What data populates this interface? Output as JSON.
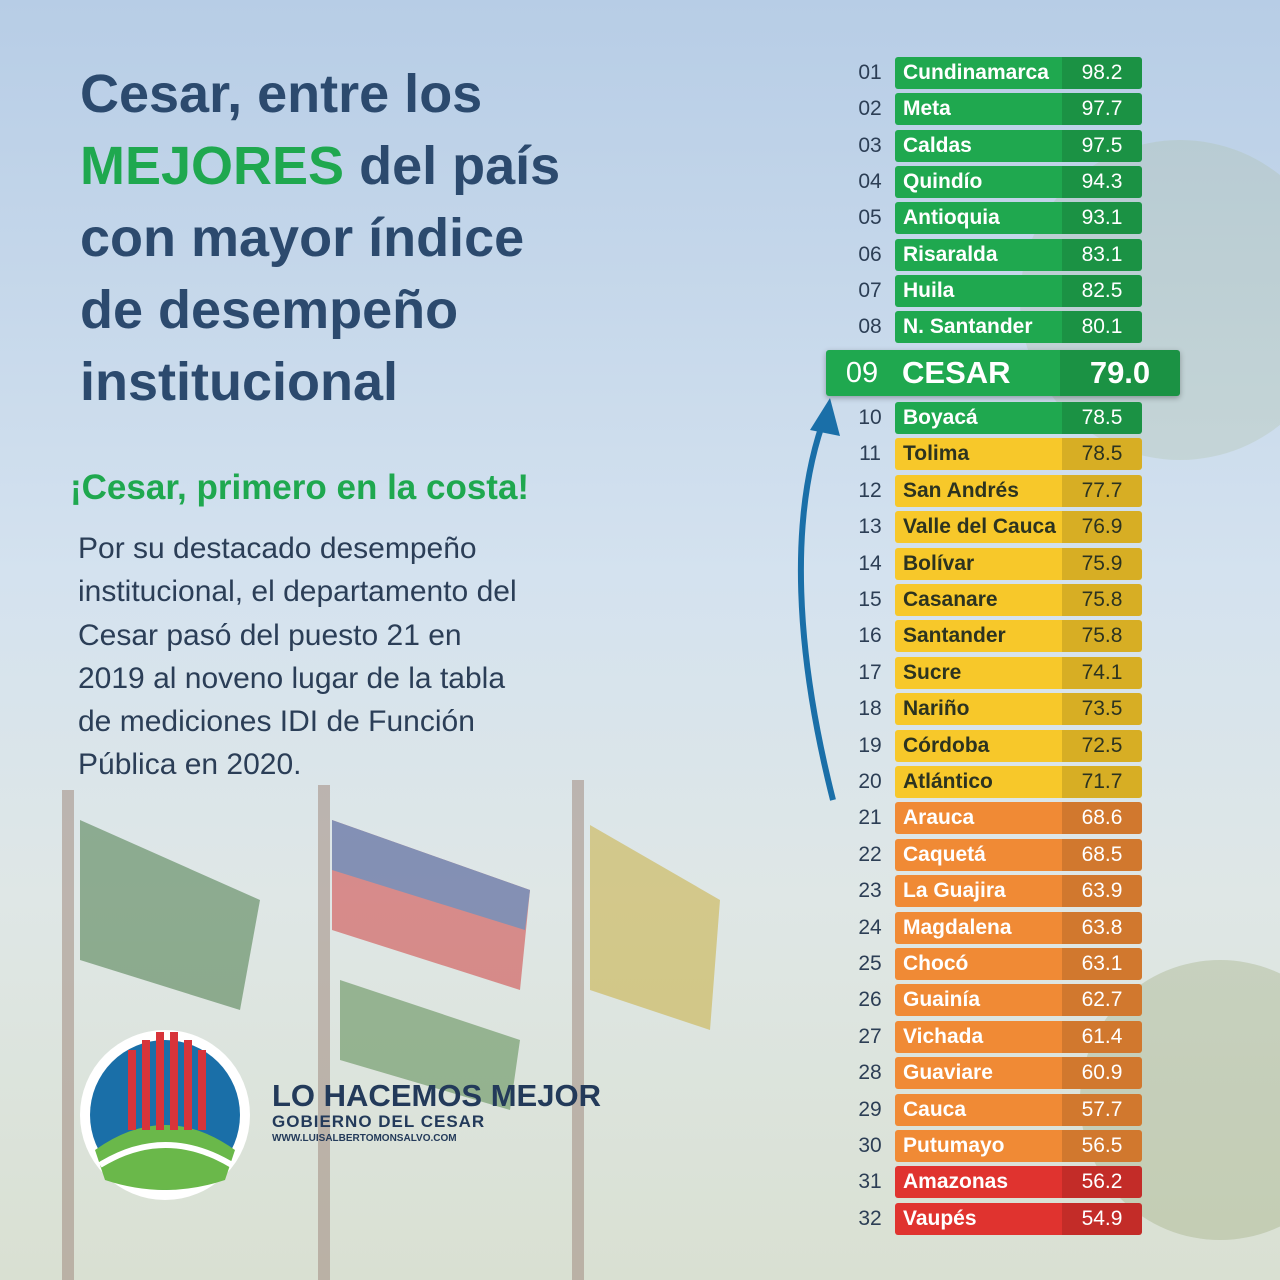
{
  "title": {
    "parts": [
      {
        "text": "Cesar, entre los",
        "color": "#2c4a6e"
      },
      {
        "text": "MEJORES",
        "color": "#1fa84f",
        "inline": " del país"
      },
      {
        "text": "con mayor índice",
        "color": "#2c4a6e"
      },
      {
        "text": "de desempeño",
        "color": "#2c4a6e"
      },
      {
        "text": "institucional",
        "color": "#2c4a6e"
      }
    ]
  },
  "subtitle": "¡Cesar, primero en la costa!",
  "body": [
    "Por su destacado desempeño",
    "institucional, el departamento del",
    "Cesar pasó del puesto 21 en",
    "2019 al noveno lugar de la tabla",
    "de mediciones IDI de Función",
    "Pública en 2020."
  ],
  "logo": {
    "slogan": "LO HACEMOS MEJOR",
    "entity": "GOBIERNO DEL CESAR",
    "url": "WWW.LUISALBERTOMONSALVO.COM"
  },
  "table": {
    "rows": [
      {
        "rank": "01",
        "name": "Cundinamarca",
        "score": "98.2",
        "color": "#1fa84f"
      },
      {
        "rank": "02",
        "name": "Meta",
        "score": "97.7",
        "color": "#1fa84f"
      },
      {
        "rank": "03",
        "name": "Caldas",
        "score": "97.5",
        "color": "#1fa84f"
      },
      {
        "rank": "04",
        "name": "Quindío",
        "score": "94.3",
        "color": "#1fa84f"
      },
      {
        "rank": "05",
        "name": "Antioquia",
        "score": "93.1",
        "color": "#1fa84f"
      },
      {
        "rank": "06",
        "name": "Risaralda",
        "score": "83.1",
        "color": "#1fa84f"
      },
      {
        "rank": "07",
        "name": "Huila",
        "score": "82.5",
        "color": "#1fa84f"
      },
      {
        "rank": "08",
        "name": "N. Santander",
        "score": "80.1",
        "color": "#1fa84f"
      },
      {
        "rank": "09",
        "name": "CESAR",
        "score": "79.0",
        "color": "#1fa84f",
        "highlight": true
      },
      {
        "rank": "10",
        "name": "Boyacá",
        "score": "78.5",
        "color": "#1fa84f"
      },
      {
        "rank": "11",
        "name": "Tolima",
        "score": "78.5",
        "color": "#f7c82a"
      },
      {
        "rank": "12",
        "name": "San Andrés",
        "score": "77.7",
        "color": "#f7c82a"
      },
      {
        "rank": "13",
        "name": "Valle del Cauca",
        "score": "76.9",
        "color": "#f7c82a"
      },
      {
        "rank": "14",
        "name": "Bolívar",
        "score": "75.9",
        "color": "#f7c82a"
      },
      {
        "rank": "15",
        "name": "Casanare",
        "score": "75.8",
        "color": "#f7c82a"
      },
      {
        "rank": "16",
        "name": "Santander",
        "score": "75.8",
        "color": "#f7c82a"
      },
      {
        "rank": "17",
        "name": "Sucre",
        "score": "74.1",
        "color": "#f7c82a"
      },
      {
        "rank": "18",
        "name": "Nariño",
        "score": "73.5",
        "color": "#f7c82a"
      },
      {
        "rank": "19",
        "name": "Córdoba",
        "score": "72.5",
        "color": "#f7c82a"
      },
      {
        "rank": "20",
        "name": "Atlántico",
        "score": "71.7",
        "color": "#f7c82a"
      },
      {
        "rank": "21",
        "name": "Arauca",
        "score": "68.6",
        "color": "#f08a35"
      },
      {
        "rank": "22",
        "name": "Caquetá",
        "score": "68.5",
        "color": "#f08a35"
      },
      {
        "rank": "23",
        "name": "La Guajira",
        "score": "63.9",
        "color": "#f08a35"
      },
      {
        "rank": "24",
        "name": "Magdalena",
        "score": "63.8",
        "color": "#f08a35"
      },
      {
        "rank": "25",
        "name": "Chocó",
        "score": "63.1",
        "color": "#f08a35"
      },
      {
        "rank": "26",
        "name": "Guainía",
        "score": "62.7",
        "color": "#f08a35"
      },
      {
        "rank": "27",
        "name": "Vichada",
        "score": "61.4",
        "color": "#f08a35"
      },
      {
        "rank": "28",
        "name": "Guaviare",
        "score": "60.9",
        "color": "#f08a35"
      },
      {
        "rank": "29",
        "name": "Cauca",
        "score": "57.7",
        "color": "#f08a35"
      },
      {
        "rank": "30",
        "name": "Putumayo",
        "score": "56.5",
        "color": "#f08a35"
      },
      {
        "rank": "31",
        "name": "Amazonas",
        "score": "56.2",
        "color": "#e0332f"
      },
      {
        "rank": "32",
        "name": "Vaupés",
        "score": "54.9",
        "color": "#e0332f"
      }
    ]
  }
}
